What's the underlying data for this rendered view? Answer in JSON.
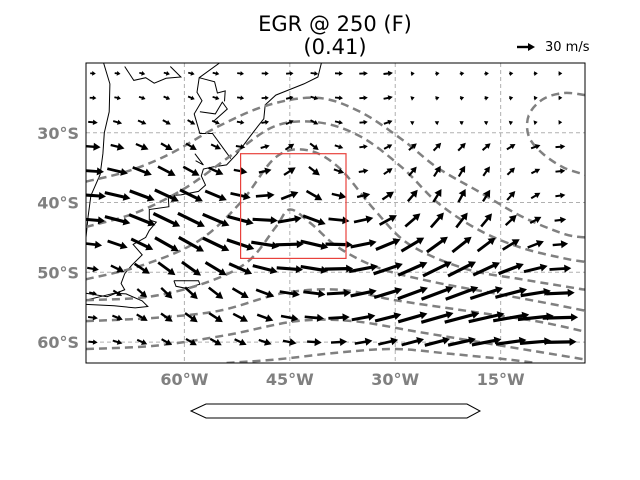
{
  "title": "EGR @ 250 (F)",
  "subtitle": "(0.41)",
  "reference_vector": {
    "label": "30 m/s",
    "speed": 30
  },
  "map": {
    "lon_range": [
      -74,
      -3
    ],
    "lat_range": [
      -63,
      -20
    ],
    "lat_ticks": [
      {
        "value": -30,
        "label": "30°S"
      },
      {
        "value": -40,
        "label": "40°S"
      },
      {
        "value": -50,
        "label": "50°S"
      },
      {
        "value": -60,
        "label": "60°S"
      }
    ],
    "lon_ticks": [
      {
        "value": -60,
        "label": "60°W"
      },
      {
        "value": -45,
        "label": "45°W"
      },
      {
        "value": -30,
        "label": "30°W"
      },
      {
        "value": -15,
        "label": "15°W"
      }
    ],
    "gridlines": true,
    "box_region": {
      "lon": [
        -52,
        -37
      ],
      "lat": [
        -48,
        -33
      ]
    },
    "colors": {
      "box": "#e8413c",
      "contour": "#808080",
      "grid": "#b0b0b0",
      "tick_text": "#808080"
    }
  },
  "wind_grid": {
    "lon_start": -73,
    "lon_step": 3.5,
    "ncols": 20,
    "lat_start": -21.5,
    "lat_step": -3.5,
    "nrows": 12
  },
  "contours": [
    [
      [
        -74,
        -37
      ],
      [
        -68,
        -35.5
      ],
      [
        -62,
        -33
      ],
      [
        -55,
        -29
      ],
      [
        -48,
        -26
      ],
      [
        -41,
        -25
      ],
      [
        -35,
        -27
      ],
      [
        -29,
        -31
      ],
      [
        -24,
        -35
      ],
      [
        -18,
        -38.5
      ],
      [
        -12,
        -42
      ],
      [
        -6,
        -44.5
      ],
      [
        -3,
        -45
      ]
    ],
    [
      [
        -74,
        -43.5
      ],
      [
        -67,
        -41.5
      ],
      [
        -60,
        -38
      ],
      [
        -53,
        -33
      ],
      [
        -47,
        -29
      ],
      [
        -41,
        -28.5
      ],
      [
        -35,
        -30.5
      ],
      [
        -29,
        -35
      ],
      [
        -24,
        -40
      ],
      [
        -18,
        -44
      ],
      [
        -12,
        -46.5
      ],
      [
        -6,
        -48
      ],
      [
        -3,
        -48.5
      ]
    ],
    [
      [
        -74,
        -51
      ],
      [
        -66,
        -49
      ],
      [
        -58,
        -45.5
      ],
      [
        -52,
        -40
      ],
      [
        -47,
        -33.5
      ],
      [
        -42.5,
        -32.5
      ],
      [
        -38,
        -35
      ],
      [
        -33,
        -41
      ],
      [
        -28,
        -46
      ],
      [
        -20,
        -49.5
      ],
      [
        -12,
        -51
      ],
      [
        -6,
        -52
      ],
      [
        -3,
        -52.5
      ]
    ],
    [
      [
        -74,
        -54
      ],
      [
        -65,
        -53.5
      ],
      [
        -57,
        -51.5
      ],
      [
        -51,
        -48.5
      ],
      [
        -47,
        -43.5
      ],
      [
        -45,
        -41
      ],
      [
        -42,
        -43
      ],
      [
        -38,
        -46.5
      ],
      [
        -32,
        -49.5
      ],
      [
        -24,
        -51.5
      ],
      [
        -16,
        -53
      ],
      [
        -8,
        -54.5
      ],
      [
        -3,
        -55.5
      ]
    ],
    [
      [
        -74,
        -57
      ],
      [
        -64,
        -56.5
      ],
      [
        -55,
        -55.5
      ],
      [
        -46,
        -53
      ],
      [
        -38,
        -52.5
      ],
      [
        -30,
        -54
      ],
      [
        -20,
        -55.5
      ],
      [
        -10,
        -57
      ],
      [
        -3,
        -58.5
      ]
    ],
    [
      [
        -74,
        -61
      ],
      [
        -64,
        -60.5
      ],
      [
        -54,
        -59
      ],
      [
        -44,
        -57
      ],
      [
        -36,
        -57
      ],
      [
        -27,
        -58.5
      ],
      [
        -18,
        -60
      ],
      [
        -9,
        -61.5
      ],
      [
        -3,
        -62.5
      ]
    ],
    [
      [
        -54,
        -63
      ],
      [
        -47,
        -62.5
      ],
      [
        -38,
        -61.5
      ],
      [
        -30,
        -61
      ],
      [
        -22,
        -61.7
      ],
      [
        -14,
        -62.5
      ],
      [
        -10,
        -63
      ]
    ],
    [
      [
        -3,
        -24.6
      ],
      [
        -6,
        -24.3
      ],
      [
        -9,
        -25.2
      ],
      [
        -11,
        -27.5
      ],
      [
        -11,
        -30.5
      ],
      [
        -9,
        -33
      ],
      [
        -6,
        -35
      ],
      [
        -3,
        -36
      ]
    ]
  ],
  "coastlines": [
    [
      [
        -71.5,
        -20
      ],
      [
        -70.6,
        -23
      ],
      [
        -70.7,
        -27
      ],
      [
        -71.4,
        -30
      ],
      [
        -71.6,
        -33
      ],
      [
        -72,
        -36
      ],
      [
        -73.3,
        -39
      ],
      [
        -73.7,
        -42
      ],
      [
        -74,
        -45
      ]
    ],
    [
      [
        -40.5,
        -20
      ],
      [
        -41,
        -22
      ],
      [
        -43,
        -23
      ],
      [
        -45,
        -23.8
      ],
      [
        -47,
        -24.6
      ],
      [
        -48.5,
        -26
      ],
      [
        -48.7,
        -28
      ],
      [
        -49.5,
        -29
      ],
      [
        -51,
        -31
      ],
      [
        -52.5,
        -33
      ],
      [
        -54,
        -34.6
      ],
      [
        -56,
        -34.9
      ],
      [
        -57.3,
        -35.2
      ],
      [
        -57.6,
        -36.2
      ],
      [
        -57,
        -37.5
      ],
      [
        -58,
        -38.4
      ],
      [
        -60.5,
        -38.9
      ],
      [
        -62.3,
        -39
      ],
      [
        -62.2,
        -40.6
      ],
      [
        -65,
        -41
      ],
      [
        -65,
        -42.5
      ],
      [
        -64,
        -42.8
      ],
      [
        -65,
        -44
      ],
      [
        -65.5,
        -45
      ],
      [
        -67.3,
        -46
      ],
      [
        -66,
        -47.5
      ],
      [
        -67.5,
        -49
      ],
      [
        -68.5,
        -50.2
      ],
      [
        -69,
        -51.6
      ],
      [
        -68.5,
        -52.5
      ],
      [
        -71,
        -53.5
      ],
      [
        -74,
        -53
      ]
    ],
    [
      [
        -58.4,
        -34
      ],
      [
        -57.3,
        -34.6
      ],
      [
        -58.5,
        -33
      ]
    ],
    [
      [
        -74,
        -54.6
      ],
      [
        -70,
        -54.8
      ],
      [
        -67,
        -55.1
      ],
      [
        -65.2,
        -54.9
      ],
      [
        -66,
        -54.1
      ],
      [
        -68.3,
        -53.1
      ],
      [
        -70,
        -53
      ],
      [
        -72,
        -53.5
      ],
      [
        -74,
        -54
      ]
    ],
    [
      [
        -61.5,
        -51.2
      ],
      [
        -58,
        -51.2
      ],
      [
        -57.8,
        -51.7
      ],
      [
        -59.8,
        -52.3
      ],
      [
        -61.2,
        -52
      ],
      [
        -61.5,
        -51.2
      ]
    ],
    [
      [
        -55,
        -20
      ],
      [
        -57.9,
        -22.1
      ],
      [
        -58.2,
        -24.2
      ],
      [
        -57.5,
        -25.4
      ],
      [
        -58.6,
        -27.3
      ],
      [
        -57.8,
        -30.1
      ],
      [
        -56,
        -30.1
      ],
      [
        -53.4,
        -33.7
      ]
    ],
    [
      [
        -62,
        -20.5
      ],
      [
        -60.5,
        -22
      ],
      [
        -62.6,
        -22.2
      ],
      [
        -64.3,
        -22.9
      ],
      [
        -65.5,
        -22.1
      ],
      [
        -67.2,
        -22.5
      ],
      [
        -68.5,
        -20.5
      ]
    ],
    [
      [
        -57.8,
        -27
      ],
      [
        -55.6,
        -27.3
      ],
      [
        -54.6,
        -25.6
      ],
      [
        -53.9,
        -26.6
      ],
      [
        -55.9,
        -28.4
      ]
    ],
    [
      [
        -54.3,
        -25.5
      ],
      [
        -54.2,
        -24
      ],
      [
        -55.3,
        -24.3
      ],
      [
        -55.7,
        -22.7
      ],
      [
        -57.9,
        -22.1
      ]
    ]
  ]
}
